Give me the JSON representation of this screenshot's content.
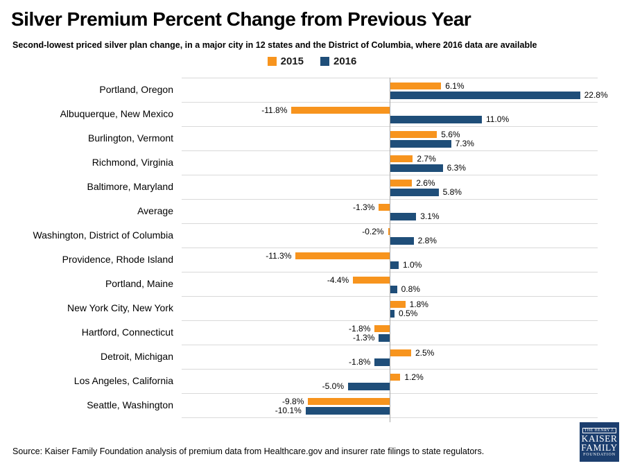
{
  "title": "Silver Premium Percent Change from Previous Year",
  "subtitle": "Second-lowest priced silver plan change, in a major city in 12 states and the District of Columbia, where 2016 data are available",
  "legend": [
    {
      "label": "2015",
      "color": "#F7941E"
    },
    {
      "label": "2016",
      "color": "#1F4E79"
    }
  ],
  "source": "Source: Kaiser Family Foundation analysis of premium data from Healthcare.gov and insurer rate filings to state regulators.",
  "logo": {
    "line1": "THE HENRY J.",
    "line2": "KAISER",
    "line3": "FAMILY",
    "line4": "FOUNDATION",
    "background": "#1C3E6E"
  },
  "chart_data": {
    "type": "bar",
    "orientation": "horizontal",
    "title": "Silver Premium Percent Change from Previous Year",
    "categories": [
      "Portland, Oregon",
      "Albuquerque, New Mexico",
      "Burlington, Vermont",
      "Richmond, Virginia",
      "Baltimore, Maryland",
      "Average",
      "Washington, District of Columbia",
      "Providence, Rhode Island",
      "Portland, Maine",
      "New York City, New York",
      "Hartford, Connecticut",
      "Detroit, Michigan",
      "Los Angeles, California",
      "Seattle, Washington"
    ],
    "series": [
      {
        "name": "2015",
        "color": "#F7941E",
        "values": [
          6.1,
          -11.8,
          5.6,
          2.7,
          2.6,
          -1.3,
          -0.2,
          -11.3,
          -4.4,
          1.8,
          -1.8,
          2.5,
          1.2,
          -9.8
        ]
      },
      {
        "name": "2016",
        "color": "#1F4E79",
        "values": [
          22.8,
          11.0,
          7.3,
          6.3,
          5.8,
          3.1,
          2.8,
          1.0,
          0.8,
          0.5,
          -1.3,
          -1.8,
          -5.0,
          -10.1
        ]
      }
    ],
    "xlim": [
      -25,
      25
    ],
    "value_label_format": "{v:.1f}%",
    "gridlines": "horizontal row separators",
    "legend_position": "top-center",
    "grid_color": "#D9D9D9",
    "axis_color": "#A6A6A6"
  }
}
